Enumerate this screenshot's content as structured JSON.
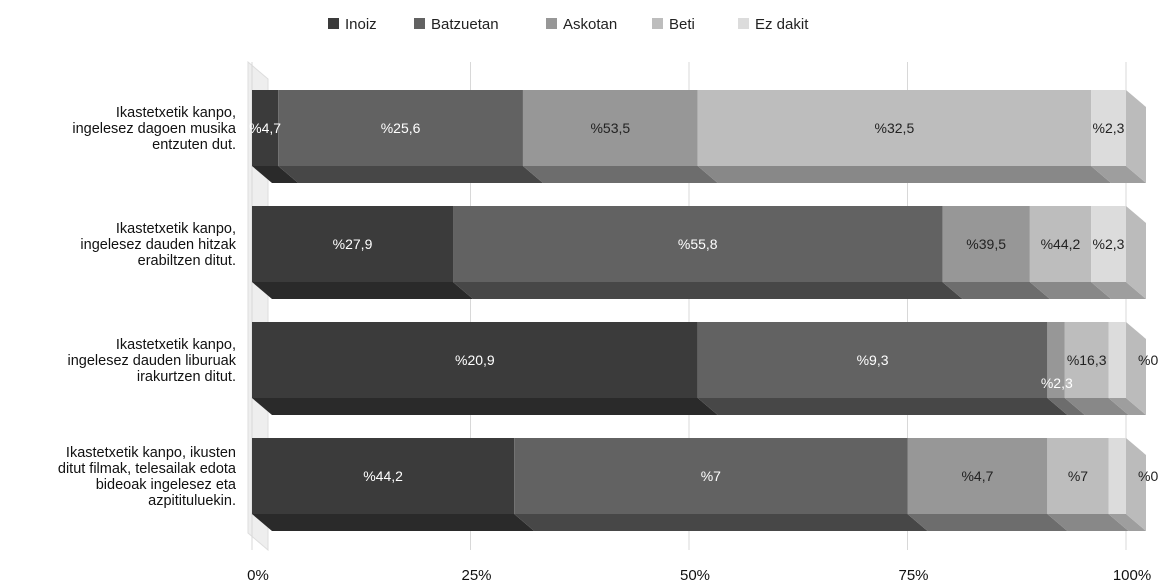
{
  "chart_data": {
    "type": "bar",
    "orientation": "horizontal",
    "stacked": "percent",
    "three_d": true,
    "legend_position": "top",
    "categories": [
      "Ikastetxetik kanpo, ingelesez dagoen musika entzuten dut.",
      "Ikastetxetik kanpo, ingelesez dauden hitzak erabiltzen ditut.",
      "Ikastetxetik kanpo, ingelesez dauden liburuak irakurtzen ditut.",
      "Ikastetxetik kanpo, ikusten ditut filmak, telesailak edota bideoak ingelesez eta azpitituluekin."
    ],
    "category_lines": [
      [
        "Ikastetxetik kanpo,",
        "ingelesez dagoen musika",
        "entzuten dut."
      ],
      [
        "Ikastetxetik kanpo,",
        "ingelesez dauden hitzak",
        "erabiltzen ditut."
      ],
      [
        "Ikastetxetik kanpo,",
        "ingelesez dauden liburuak",
        "irakurtzen ditut."
      ],
      [
        "Ikastetxetik kanpo, ikusten",
        "ditut filmak, telesailak edota",
        "bideoak ingelesez eta",
        "azpitituluekin."
      ]
    ],
    "series": [
      {
        "name": "Inoiz",
        "color": "#3b3b3b",
        "labels": [
          "%4,7",
          "%27,9",
          "%20,9",
          "%44,2"
        ]
      },
      {
        "name": "Batzuetan",
        "color": "#626262",
        "labels": [
          "%25,6",
          "%55,8",
          "%9,3",
          "%7"
        ]
      },
      {
        "name": "Askotan",
        "color": "#979797",
        "labels": [
          "%53,5",
          "%39,5",
          "%2,3",
          "%4,7"
        ]
      },
      {
        "name": "Beti",
        "color": "#bdbdbd",
        "labels": [
          "%32,5",
          "%44,2",
          "%16,3",
          "%7"
        ]
      },
      {
        "name": "Ez dakit",
        "color": "#dcdcdc",
        "labels": [
          "%2,3",
          "%2,3",
          "%0",
          "%0"
        ]
      }
    ],
    "segment_ends_percent": [
      [
        3,
        31,
        51,
        96,
        100
      ],
      [
        23,
        79,
        89,
        96,
        100
      ],
      [
        51,
        91,
        93,
        98,
        100
      ],
      [
        30,
        75,
        91,
        98,
        100
      ]
    ],
    "x_ticks": [
      "0%",
      "25%",
      "50%",
      "75%",
      "100%"
    ],
    "xlim": [
      0,
      100
    ],
    "grid": true
  }
}
